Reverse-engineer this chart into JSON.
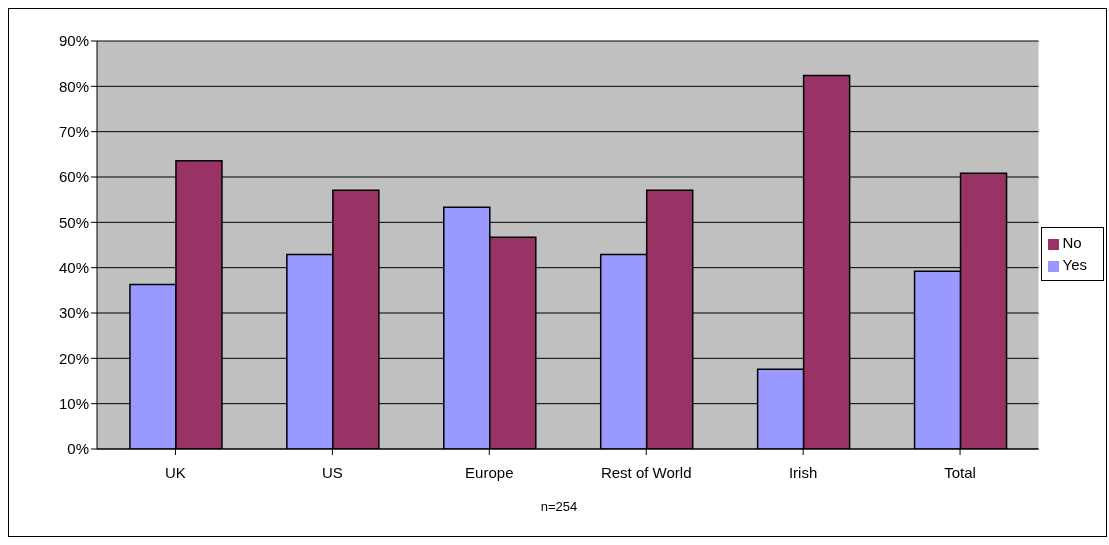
{
  "chart_data": {
    "type": "bar",
    "categories": [
      "UK",
      "US",
      "Europe",
      "Rest of World",
      "Irish",
      "Total"
    ],
    "series": [
      {
        "name": "Yes",
        "color": "#9999ff",
        "values": [
          36.3,
          42.9,
          53.3,
          42.9,
          17.6,
          39.2
        ]
      },
      {
        "name": "No",
        "color": "#993366",
        "values": [
          63.6,
          57.1,
          46.7,
          57.1,
          82.4,
          60.8
        ]
      }
    ],
    "ylim": [
      0,
      90
    ],
    "yticks": [
      {
        "value": 0,
        "label": "0%"
      },
      {
        "value": 10,
        "label": "10%"
      },
      {
        "value": 20,
        "label": "20%"
      },
      {
        "value": 30,
        "label": "30%"
      },
      {
        "value": 40,
        "label": "40%"
      },
      {
        "value": 50,
        "label": "50%"
      },
      {
        "value": 60,
        "label": "60%"
      },
      {
        "value": 70,
        "label": "70%"
      },
      {
        "value": 80,
        "label": "80%"
      },
      {
        "value": 90,
        "label": "90%"
      }
    ],
    "grid": "y",
    "legend": "right",
    "annotations": [
      "n=254"
    ]
  }
}
